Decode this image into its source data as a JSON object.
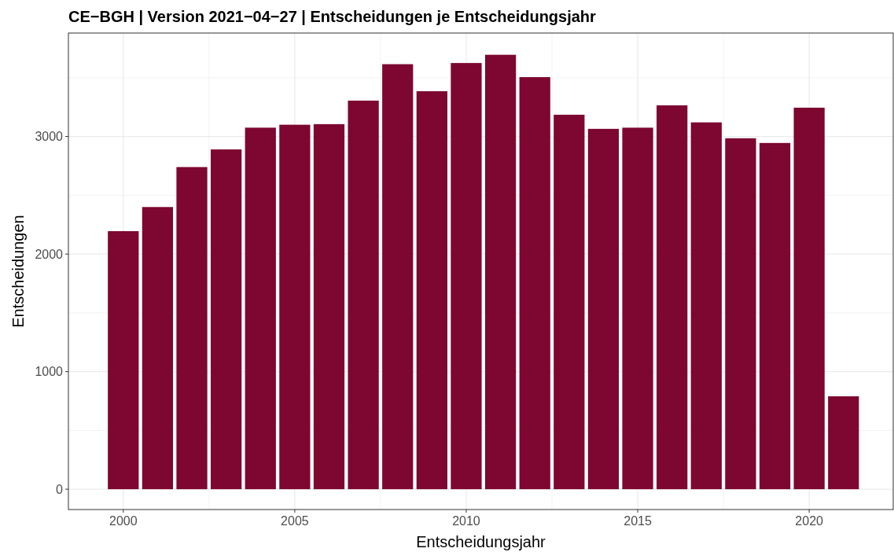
{
  "chart_data": {
    "type": "bar",
    "title": "CE−BGH | Version 2021−04−27 | Entscheidungen je Entscheidungsjahr",
    "xlabel": "Entscheidungsjahr",
    "ylabel": "Entscheidungen",
    "x": [
      2000,
      2001,
      2002,
      2003,
      2004,
      2005,
      2006,
      2007,
      2008,
      2009,
      2010,
      2011,
      2012,
      2013,
      2014,
      2015,
      2016,
      2017,
      2018,
      2019,
      2020,
      2021
    ],
    "values": [
      2195,
      2400,
      2740,
      2890,
      3075,
      3100,
      3105,
      3305,
      3615,
      3385,
      3625,
      3695,
      3505,
      3185,
      3065,
      3075,
      3265,
      3120,
      2985,
      2945,
      3245,
      790
    ],
    "color": "#7d0731",
    "xlim": [
      1998.4,
      2022.45
    ],
    "xticks": [
      2000,
      2005,
      2010,
      2015,
      2020
    ],
    "ylim": [
      -173,
      3880
    ],
    "yticks": [
      0,
      1000,
      2000,
      3000
    ],
    "grid": true
  }
}
